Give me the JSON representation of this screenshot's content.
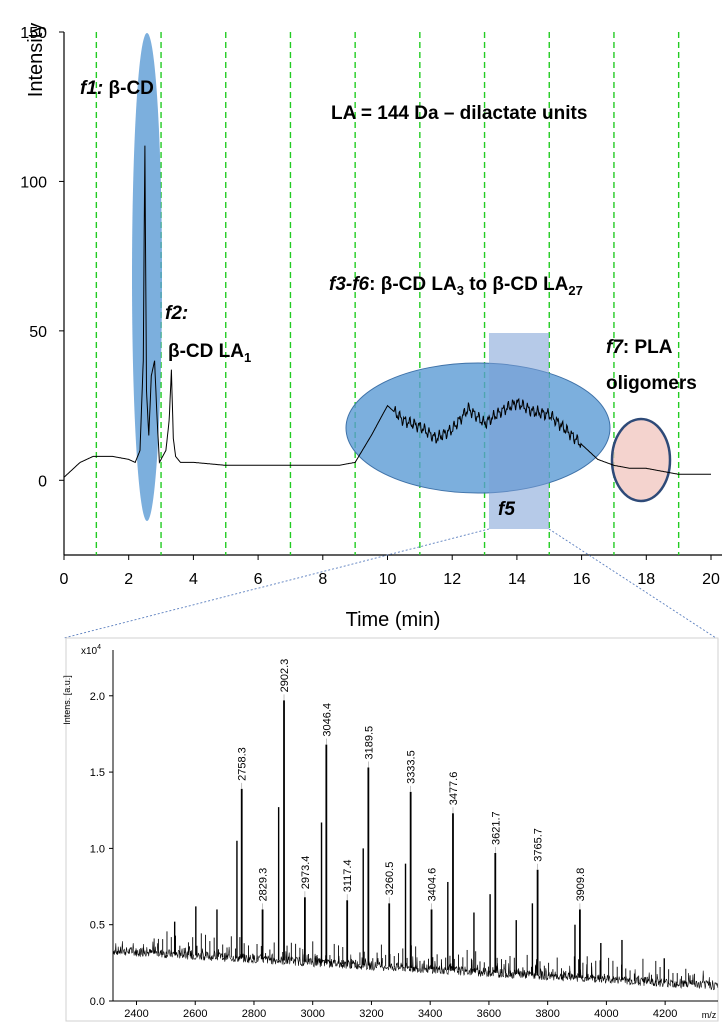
{
  "chart_data": [
    {
      "type": "line",
      "title": "",
      "xlabel": "Time (min)",
      "ylabel": "Intensity",
      "xlim": [
        0,
        20
      ],
      "ylim": [
        -25,
        150
      ],
      "grid": false,
      "x_ticks": [
        "0",
        "2",
        "4",
        "6",
        "8",
        "10",
        "12",
        "14",
        "16",
        "18",
        "20"
      ],
      "y_ticks": [
        "0",
        "50",
        "100",
        "150"
      ],
      "fraction_boundaries_min": [
        1,
        3,
        5,
        7,
        9,
        11,
        13,
        15,
        17,
        19
      ],
      "series": [
        {
          "name": "chromatogram",
          "x": [
            0,
            0.5,
            0.9,
            1.5,
            2.0,
            2.2,
            2.35,
            2.45,
            2.5,
            2.55,
            2.62,
            2.7,
            2.8,
            2.88,
            2.95,
            3.05,
            3.15,
            3.25,
            3.32,
            3.38,
            3.45,
            3.6,
            4.0,
            5.0,
            6.0,
            7.0,
            8.0,
            8.5,
            9.0,
            9.5,
            10.0,
            10.5,
            11.0,
            11.5,
            12.0,
            12.5,
            13.0,
            13.5,
            14.0,
            14.5,
            15.0,
            15.5,
            16.0,
            16.5,
            17.0,
            17.5,
            18.0,
            18.5,
            19.0,
            20.0
          ],
          "y": [
            1,
            6,
            8,
            8,
            7,
            6,
            10,
            40,
            112,
            30,
            15,
            35,
            40,
            20,
            6,
            8,
            10,
            20,
            37,
            14,
            8,
            6,
            6,
            5,
            5,
            5,
            5,
            5,
            6,
            15,
            25,
            20,
            18,
            14,
            17,
            24,
            19,
            23,
            26,
            23,
            22,
            17,
            12,
            7,
            5,
            4,
            4,
            3,
            2,
            2
          ]
        }
      ],
      "annotations": {
        "f1_label": "f1:",
        "f1_text": "β-CD",
        "note": "LA = 144 Da – dilactate units",
        "f2_label": "f2:",
        "f2_text": "β-CD LA",
        "f2_sub": "1",
        "f36_label": "f3-f6",
        "f36_text_a": ": β-CD LA",
        "f36_sub_a": "3",
        "f36_text_b": " to β-CD LA",
        "f36_sub_b": "27",
        "f7_label": "f7",
        "f7_text_a": ": PLA",
        "f7_text_b": "oligomers",
        "f5_label": "f5"
      }
    },
    {
      "type": "bar",
      "title": "",
      "xlabel": "m/z",
      "ylabel": "Intens. [a.u.]",
      "y_multiplier": "x10",
      "y_multiplier_exp": "4",
      "xlim": [
        2320,
        4380
      ],
      "ylim": [
        0,
        2.3
      ],
      "x_ticks": [
        "2400",
        "2600",
        "2800",
        "3000",
        "3200",
        "3400",
        "3600",
        "3800",
        "4000",
        "4200"
      ],
      "y_ticks": [
        "0.0",
        "0.5",
        "1.0",
        "1.5",
        "2.0"
      ],
      "x_unit": "m/z",
      "labeled_peaks": [
        {
          "mz": 2758.3,
          "intensity": 1.39,
          "label": "2758.3"
        },
        {
          "mz": 2829.3,
          "intensity": 0.6,
          "label": "2829.3"
        },
        {
          "mz": 2902.3,
          "intensity": 1.97,
          "label": "2902.3"
        },
        {
          "mz": 2973.4,
          "intensity": 0.68,
          "label": "2973.4"
        },
        {
          "mz": 3046.4,
          "intensity": 1.68,
          "label": "3046.4"
        },
        {
          "mz": 3117.4,
          "intensity": 0.66,
          "label": "3117.4"
        },
        {
          "mz": 3189.5,
          "intensity": 1.53,
          "label": "3189.5"
        },
        {
          "mz": 3260.5,
          "intensity": 0.64,
          "label": "3260.5"
        },
        {
          "mz": 3333.5,
          "intensity": 1.37,
          "label": "3333.5"
        },
        {
          "mz": 3404.6,
          "intensity": 0.6,
          "label": "3404.6"
        },
        {
          "mz": 3477.6,
          "intensity": 1.23,
          "label": "3477.6"
        },
        {
          "mz": 3621.7,
          "intensity": 0.97,
          "label": "3621.7"
        },
        {
          "mz": 3765.7,
          "intensity": 0.86,
          "label": "3765.7"
        },
        {
          "mz": 3909.8,
          "intensity": 0.6,
          "label": "3909.8"
        }
      ],
      "unlabeled_peaks": [
        {
          "mz": 2530,
          "intensity": 0.52
        },
        {
          "mz": 2602,
          "intensity": 0.62
        },
        {
          "mz": 2674,
          "intensity": 0.6
        },
        {
          "mz": 2742,
          "intensity": 1.05
        },
        {
          "mz": 2884,
          "intensity": 1.27
        },
        {
          "mz": 3030,
          "intensity": 1.17
        },
        {
          "mz": 3172,
          "intensity": 1.0
        },
        {
          "mz": 3316,
          "intensity": 0.9
        },
        {
          "mz": 3460,
          "intensity": 0.78
        },
        {
          "mz": 3549,
          "intensity": 0.58
        },
        {
          "mz": 3604,
          "intensity": 0.7
        },
        {
          "mz": 3693,
          "intensity": 0.53
        },
        {
          "mz": 3748,
          "intensity": 0.64
        },
        {
          "mz": 3893,
          "intensity": 0.5
        },
        {
          "mz": 3981,
          "intensity": 0.38
        },
        {
          "mz": 4053,
          "intensity": 0.4
        },
        {
          "mz": 4197,
          "intensity": 0.28
        }
      ],
      "baseline": {
        "start": 0.33,
        "end": 0.1
      }
    }
  ]
}
